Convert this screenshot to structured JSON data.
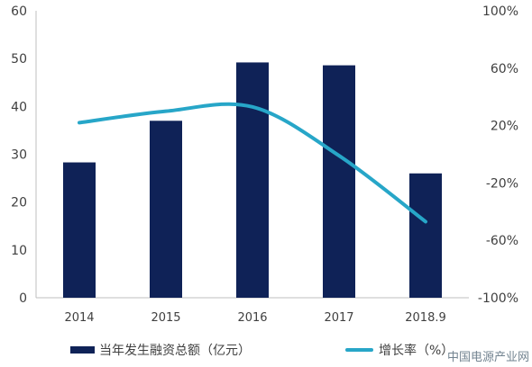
{
  "chart_data": {
    "type": "bar",
    "categories": [
      "2014",
      "2015",
      "2016",
      "2017",
      "2018.9"
    ],
    "series": [
      {
        "name": "当年发生融资总额（亿元）",
        "type": "bar",
        "axis": "left",
        "values": [
          28.3,
          37.0,
          49.2,
          48.6,
          26.0
        ],
        "color": "#0f2257"
      },
      {
        "name": "增长率（%）",
        "type": "line",
        "axis": "right",
        "smooth": true,
        "values": [
          22,
          30,
          33,
          -1,
          -47
        ],
        "color": "#27a6c8"
      }
    ],
    "y_left": {
      "ticks": [
        "0",
        "10",
        "20",
        "30",
        "40",
        "50",
        "60"
      ],
      "lim": [
        0,
        60
      ]
    },
    "y_right": {
      "ticks": [
        "-100%",
        "-60%",
        "-20%",
        "20%",
        "60%",
        "100%"
      ],
      "lim": [
        -100,
        100
      ]
    },
    "legend_position": "bottom",
    "grid": false
  },
  "watermark": "中国电源产业网"
}
